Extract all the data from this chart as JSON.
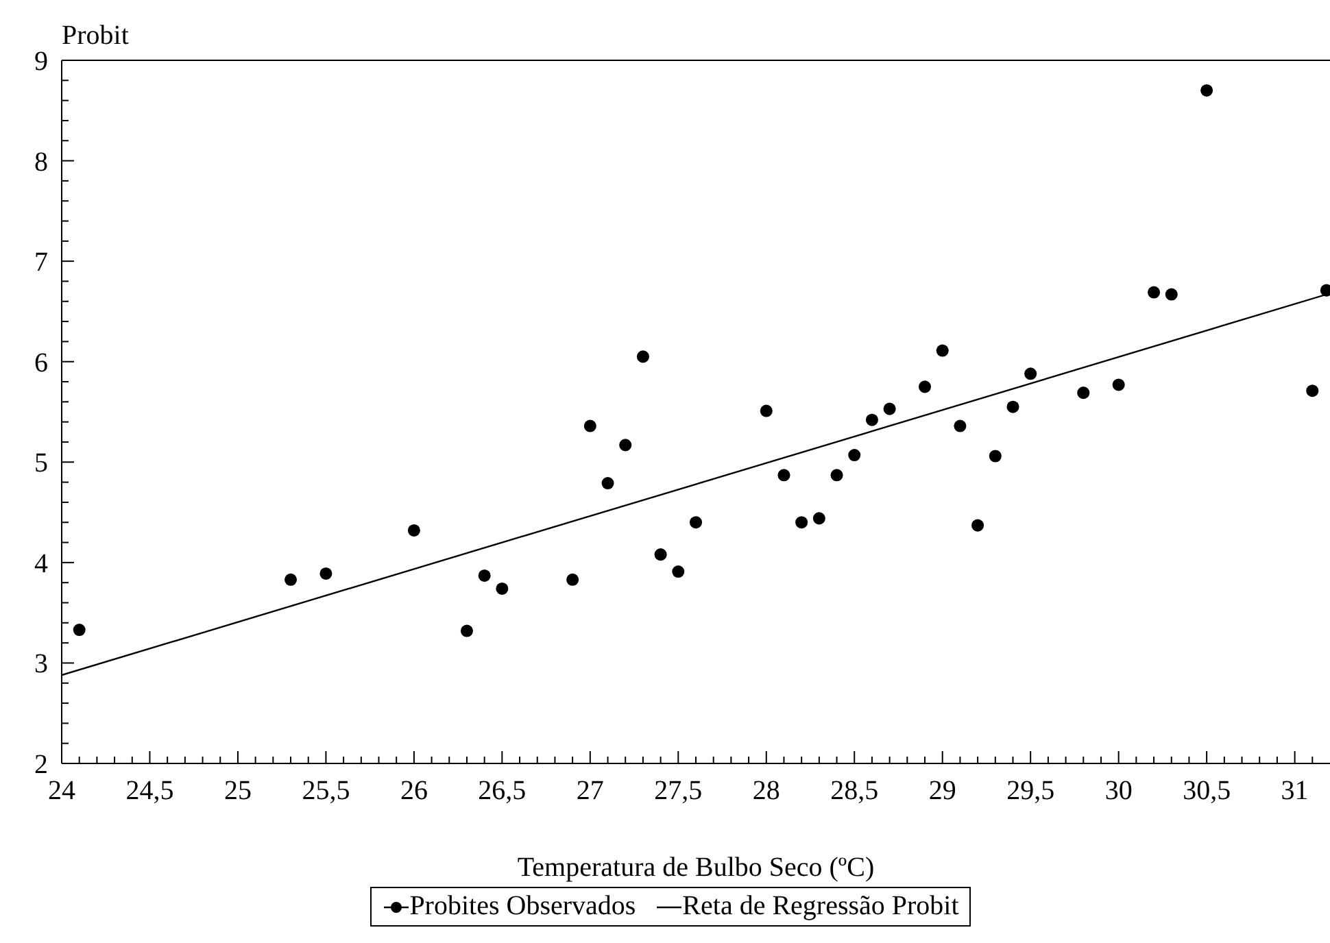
{
  "chart_data": {
    "type": "scatter",
    "ylabel": "Probit",
    "xlabel": "Temperatura de Bulbo Seco (ºC)",
    "series": [
      {
        "name": "Probites Observados",
        "color": "#000000",
        "marker": "circle",
        "x": [
          24.1,
          25.3,
          25.5,
          26.0,
          26.3,
          26.4,
          26.5,
          26.9,
          27.0,
          27.1,
          27.2,
          27.3,
          27.4,
          27.5,
          27.6,
          28.0,
          28.1,
          28.2,
          28.3,
          28.4,
          28.5,
          28.6,
          28.7,
          28.9,
          29.0,
          29.1,
          29.2,
          29.3,
          29.4,
          29.5,
          29.8,
          30.0,
          30.2,
          30.3,
          30.5,
          31.1,
          31.18
        ],
        "values": [
          3.33,
          3.83,
          3.89,
          4.32,
          3.32,
          3.87,
          3.74,
          3.83,
          5.36,
          4.79,
          5.17,
          6.05,
          4.08,
          3.91,
          4.4,
          5.51,
          4.87,
          4.4,
          4.44,
          4.87,
          5.07,
          5.42,
          5.53,
          5.75,
          6.11,
          5.36,
          4.37,
          5.06,
          5.55,
          5.88,
          5.69,
          5.77,
          6.69,
          6.67,
          8.7,
          5.71,
          6.71
        ]
      },
      {
        "name": "Reta de Regressão Probit",
        "type": "line",
        "marker": "none",
        "color": "#000000",
        "x": [
          24,
          31.2
        ],
        "values": [
          2.88,
          6.68
        ]
      }
    ],
    "xlim": [
      24,
      31.2
    ],
    "xticks": [
      24,
      {
        "value": 24.1,
        "label": null
      },
      {
        "value": 24.2,
        "label": null
      },
      {
        "value": 24.3,
        "label": null
      },
      {
        "value": 24.4,
        "label": null
      },
      {
        "value": 24.5,
        "label": "24,5"
      },
      {
        "value": 24.6,
        "label": null
      },
      {
        "value": 24.7,
        "label": null
      },
      {
        "value": 24.8,
        "label": null
      },
      {
        "value": 24.9,
        "label": null
      },
      25,
      {
        "value": 25.1,
        "label": null
      },
      {
        "value": 25.2,
        "label": null
      },
      {
        "value": 25.3,
        "label": null
      },
      {
        "value": 25.4,
        "label": null
      },
      {
        "value": 25.5,
        "label": "25,5"
      },
      {
        "value": 25.6,
        "label": null
      },
      {
        "value": 25.7,
        "label": null
      },
      {
        "value": 25.8,
        "label": null
      },
      {
        "value": 25.9,
        "label": null
      },
      26,
      {
        "value": 26.1,
        "label": null
      },
      {
        "value": 26.2,
        "label": null
      },
      {
        "value": 26.3,
        "label": null
      },
      {
        "value": 26.4,
        "label": null
      },
      {
        "value": 26.5,
        "label": "26,5"
      },
      {
        "value": 26.6,
        "label": null
      },
      {
        "value": 26.7,
        "label": null
      },
      {
        "value": 26.8,
        "label": null
      },
      {
        "value": 26.9,
        "label": null
      },
      27,
      {
        "value": 27.1,
        "label": null
      },
      {
        "value": 27.2,
        "label": null
      },
      {
        "value": 27.3,
        "label": null
      },
      {
        "value": 27.4,
        "label": null
      },
      {
        "value": 27.5,
        "label": "27,5"
      },
      {
        "value": 27.6,
        "label": null
      },
      {
        "value": 27.7,
        "label": null
      },
      {
        "value": 27.8,
        "label": null
      },
      {
        "value": 27.9,
        "label": null
      },
      28,
      {
        "value": 28.1,
        "label": null
      },
      {
        "value": 28.2,
        "label": null
      },
      {
        "value": 28.3,
        "label": null
      },
      {
        "value": 28.4,
        "label": null
      },
      {
        "value": 28.5,
        "label": "28,5"
      },
      {
        "value": 28.6,
        "label": null
      },
      {
        "value": 28.7,
        "label": null
      },
      {
        "value": 28.8,
        "label": null
      },
      {
        "value": 28.9,
        "label": null
      },
      29,
      {
        "value": 29.1,
        "label": null
      },
      {
        "value": 29.2,
        "label": null
      },
      {
        "value": 29.3,
        "label": null
      },
      {
        "value": 29.4,
        "label": null
      },
      {
        "value": 29.5,
        "label": "29,5"
      },
      {
        "value": 29.6,
        "label": null
      },
      {
        "value": 29.7,
        "label": null
      },
      {
        "value": 29.8,
        "label": null
      },
      {
        "value": 29.9,
        "label": null
      },
      30,
      {
        "value": 30.1,
        "label": null
      },
      {
        "value": 30.2,
        "label": null
      },
      {
        "value": 30.3,
        "label": null
      },
      {
        "value": 30.4,
        "label": null
      },
      {
        "value": 30.5,
        "label": "30,5"
      },
      {
        "value": 30.6,
        "label": null
      },
      {
        "value": 30.7,
        "label": null
      },
      {
        "value": 30.8,
        "label": null
      },
      {
        "value": 30.9,
        "label": null
      },
      31,
      {
        "value": 31.1,
        "label": null
      }
    ],
    "ylim": [
      2,
      9
    ],
    "yticks": [
      2,
      {
        "value": 2.2,
        "label": null
      },
      {
        "value": 2.4,
        "label": null
      },
      {
        "value": 2.6,
        "label": null
      },
      {
        "value": 2.8,
        "label": null
      },
      3,
      {
        "value": 3.2,
        "label": null
      },
      {
        "value": 3.4,
        "label": null
      },
      {
        "value": 3.6,
        "label": null
      },
      {
        "value": 3.8,
        "label": null
      },
      4,
      {
        "value": 4.2,
        "label": null
      },
      {
        "value": 4.4,
        "label": null
      },
      {
        "value": 4.6,
        "label": null
      },
      {
        "value": 4.8,
        "label": null
      },
      5,
      {
        "value": 5.2,
        "label": null
      },
      {
        "value": 5.4,
        "label": null
      },
      {
        "value": 5.6,
        "label": null
      },
      {
        "value": 5.8,
        "label": null
      },
      6,
      {
        "value": 6.2,
        "label": null
      },
      {
        "value": 6.4,
        "label": null
      },
      {
        "value": 6.6,
        "label": null
      },
      {
        "value": 6.8,
        "label": null
      },
      7,
      {
        "value": 7.2,
        "label": null
      },
      {
        "value": 7.4,
        "label": null
      },
      {
        "value": 7.6,
        "label": null
      },
      {
        "value": 7.8,
        "label": null
      },
      8,
      {
        "value": 8.2,
        "label": null
      },
      {
        "value": 8.4,
        "label": null
      },
      {
        "value": 8.6,
        "label": null
      },
      {
        "value": 8.8,
        "label": null
      },
      9
    ],
    "legend": "bottom",
    "grid": false
  }
}
